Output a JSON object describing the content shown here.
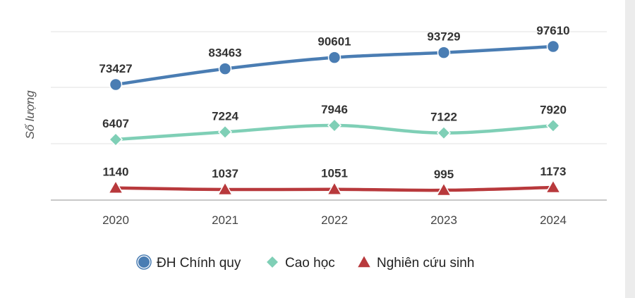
{
  "chart_data": {
    "type": "line",
    "title": "",
    "xlabel": "",
    "ylabel": "Số lượng",
    "categories": [
      "2020",
      "2021",
      "2022",
      "2023",
      "2024"
    ],
    "grid": true,
    "legend": "bottom",
    "series": [
      {
        "name": "ĐH Chính quy",
        "values": [
          73427,
          83463,
          90601,
          93729,
          97610
        ],
        "color": "#4a7db3",
        "marker": "circle"
      },
      {
        "name": "Cao học",
        "values": [
          6407,
          7224,
          7946,
          7122,
          7920
        ],
        "color": "#7fcfb6",
        "marker": "diamond"
      },
      {
        "name": "Nghiên cứu sinh",
        "values": [
          1140,
          1037,
          1051,
          995,
          1173
        ],
        "color": "#b8393c",
        "marker": "triangle"
      }
    ]
  }
}
